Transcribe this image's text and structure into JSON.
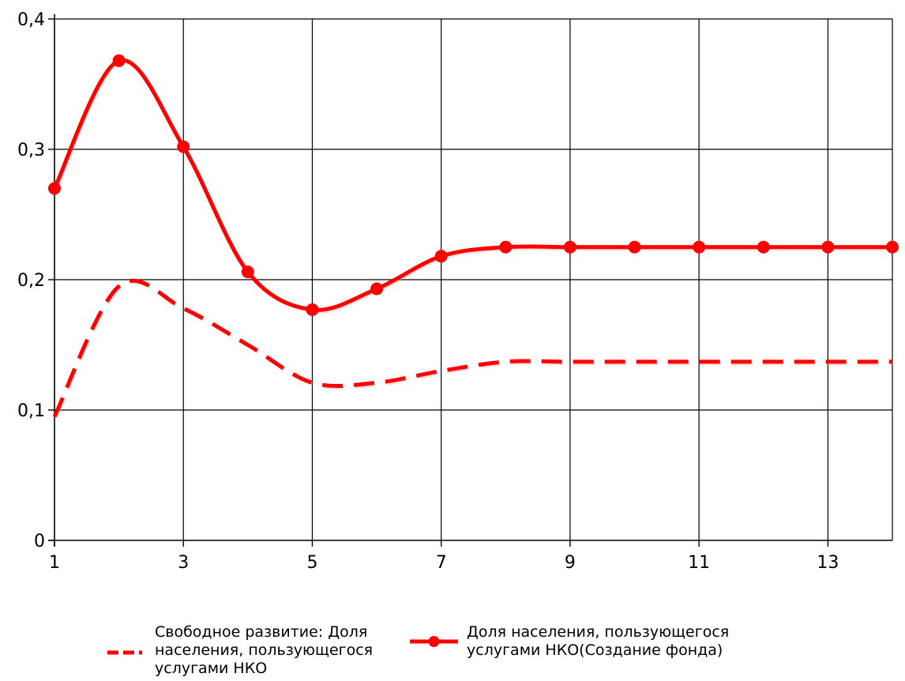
{
  "chart_data": {
    "type": "line",
    "title": "",
    "xlabel": "",
    "ylabel": "",
    "xlim": [
      1,
      14
    ],
    "ylim": [
      0,
      0.4
    ],
    "x_ticks": [
      1,
      3,
      5,
      7,
      9,
      11,
      13
    ],
    "x_tick_labels": [
      "1",
      "3",
      "5",
      "7",
      "9",
      "11",
      "13"
    ],
    "y_ticks": [
      0,
      0.1,
      0.2,
      0.3,
      0.4
    ],
    "y_tick_labels": [
      "0",
      "0,1",
      "0,2",
      "0,3",
      "0,4"
    ],
    "grid": true,
    "legend_position": "bottom",
    "x": [
      1,
      2,
      3,
      4,
      5,
      6,
      7,
      8,
      9,
      10,
      11,
      12,
      13,
      14
    ],
    "series": [
      {
        "name": "Свободное развитие: Доля населения, пользующегося услугами НКО",
        "legend_lines": [
          "Свободное развитие: Доля",
          "населения, пользующегося",
          "услугами НКО"
        ],
        "color": "#ff0000",
        "style": "dashed",
        "markers": false,
        "values": [
          0.095,
          0.195,
          0.178,
          0.15,
          0.121,
          0.121,
          0.13,
          0.137,
          0.137,
          0.137,
          0.137,
          0.137,
          0.137,
          0.137
        ]
      },
      {
        "name": "Доля населения, пользующегося услугами НКО(Создание фонда)",
        "legend_lines": [
          "Доля населения, пользующегося",
          "услугами НКО(Создание фонда)"
        ],
        "color": "#ff0000",
        "style": "solid",
        "markers": true,
        "values": [
          0.27,
          0.368,
          0.302,
          0.206,
          0.177,
          0.193,
          0.218,
          0.225,
          0.225,
          0.225,
          0.225,
          0.225,
          0.225,
          0.225
        ]
      }
    ]
  }
}
